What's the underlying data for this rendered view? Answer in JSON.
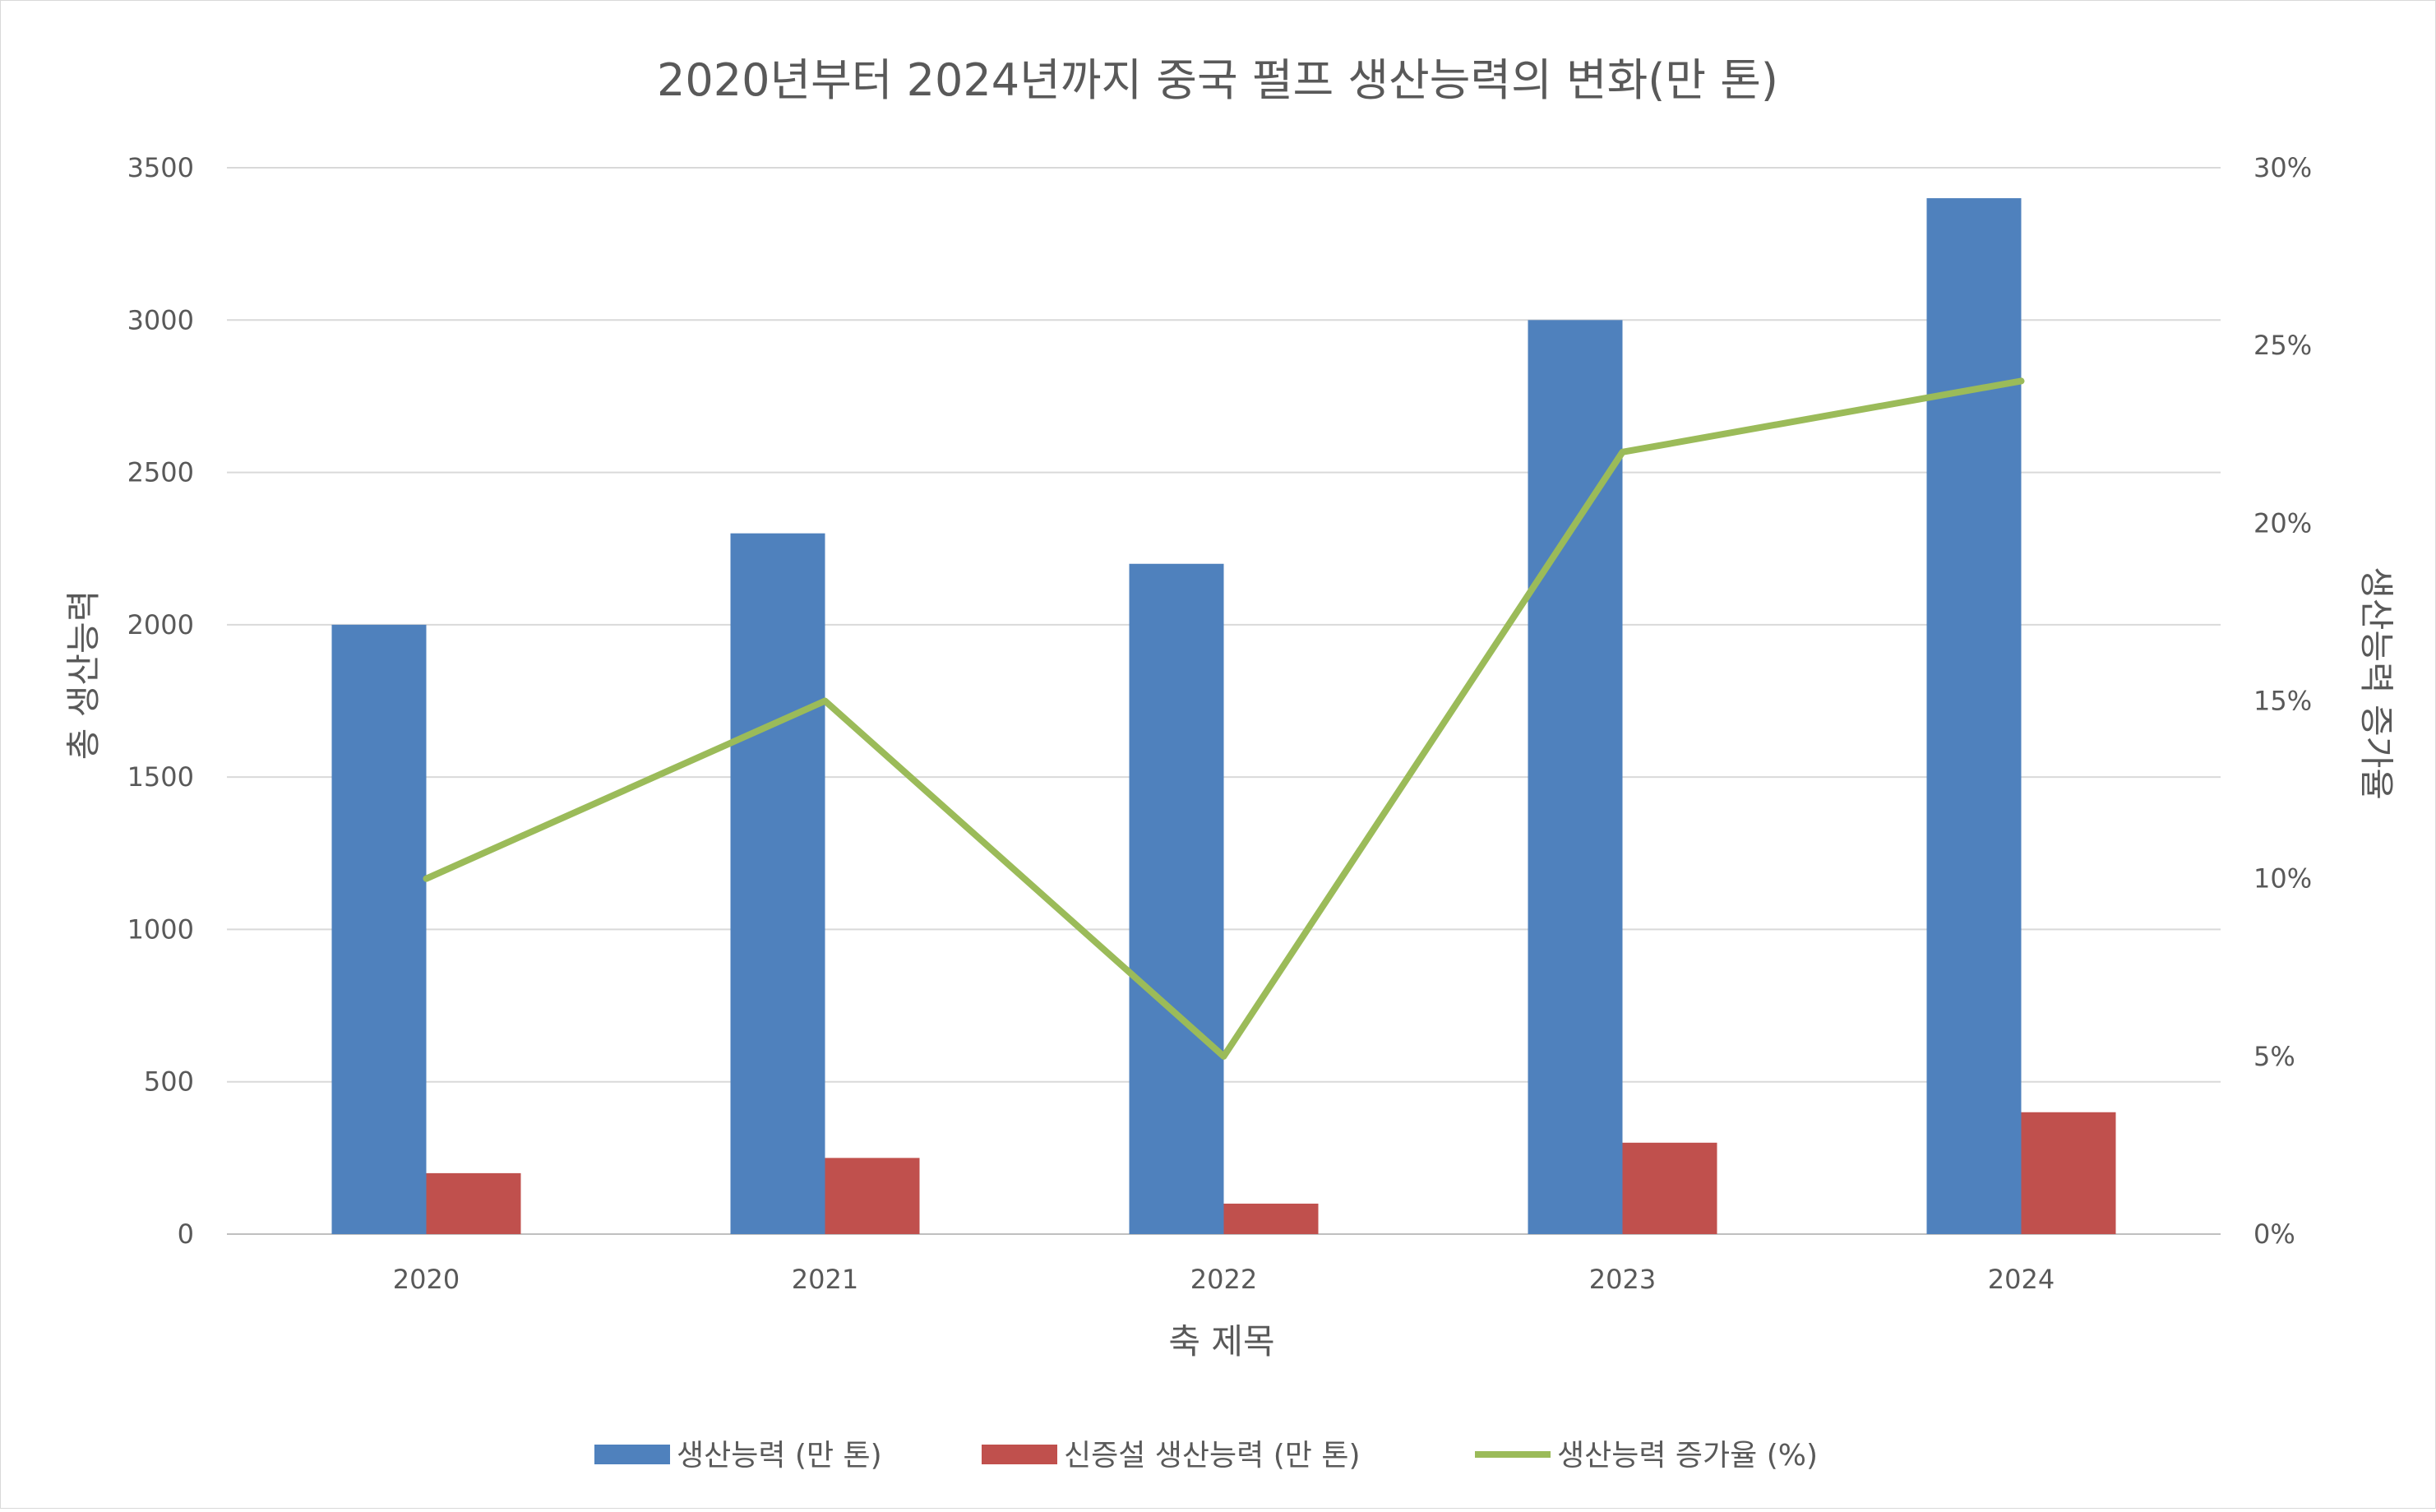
{
  "chart_data": {
    "type": "bar",
    "title": "2020년부터 2024년까지 중국 펄프 생산능력의 변화(만 톤)",
    "xlabel": "축 제목",
    "ylabel": "총 생산능력",
    "y2label": "생산능력 증가율",
    "categories": [
      "2020",
      "2021",
      "2022",
      "2023",
      "2024"
    ],
    "ylim": [
      0,
      3500
    ],
    "y_ticks": [
      "0",
      "500",
      "1000",
      "1500",
      "2000",
      "2500",
      "3000",
      "3500"
    ],
    "y2lim": [
      0,
      30
    ],
    "y2_ticks": [
      "0%",
      "5%",
      "10%",
      "15%",
      "20%",
      "25%",
      "30%"
    ],
    "grid": true,
    "legend_position": "bottom",
    "series": [
      {
        "name": "생산능력 (만 톤)",
        "type": "bar",
        "axis": "left",
        "color": "#4F81BD",
        "values": [
          2000,
          2300,
          2200,
          3000,
          3400
        ]
      },
      {
        "name": "신증설 생산능력 (만 톤)",
        "type": "bar",
        "axis": "left",
        "color": "#C0504D",
        "values": [
          200,
          250,
          100,
          300,
          400
        ]
      },
      {
        "name": "생산능력 증가율 (%)",
        "type": "line",
        "axis": "right",
        "color": "#9BBB59",
        "values": [
          10,
          15,
          5,
          22,
          24
        ]
      }
    ]
  }
}
